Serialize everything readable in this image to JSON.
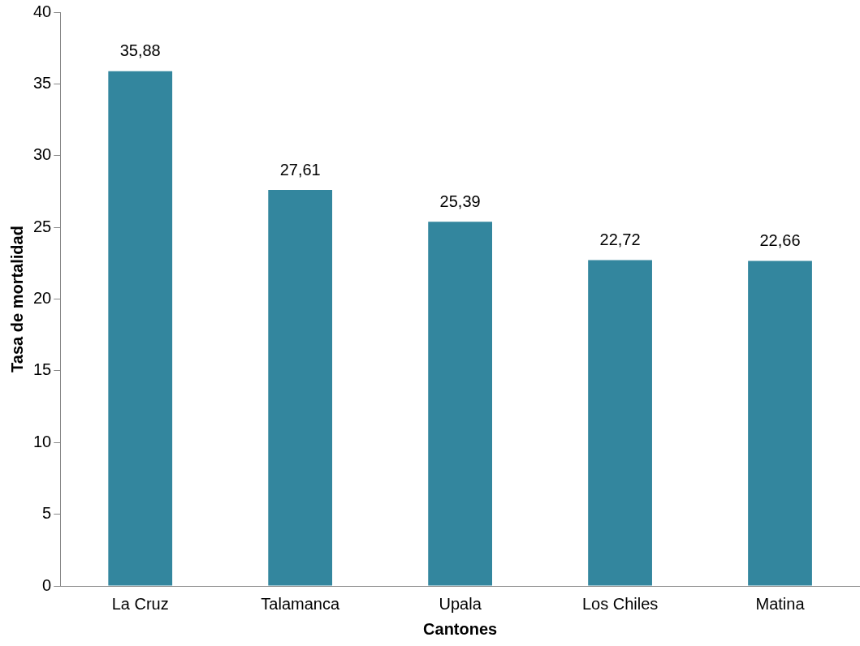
{
  "chart_data": {
    "type": "bar",
    "xlabel": "Cantones",
    "ylabel": "Tasa de mortalidad",
    "categories": [
      "La Cruz",
      "Talamanca",
      "Upala",
      "Los Chiles",
      "Matina"
    ],
    "values": [
      35.88,
      27.61,
      25.39,
      22.72,
      22.66
    ],
    "value_labels": [
      "35,88",
      "27,61",
      "25,39",
      "22,72",
      "22,66"
    ],
    "color": "#33869e",
    "ylim": [
      0,
      40
    ],
    "yticks": [
      0,
      5,
      10,
      15,
      20,
      25,
      30,
      35,
      40
    ],
    "grid": false,
    "legend": false
  }
}
